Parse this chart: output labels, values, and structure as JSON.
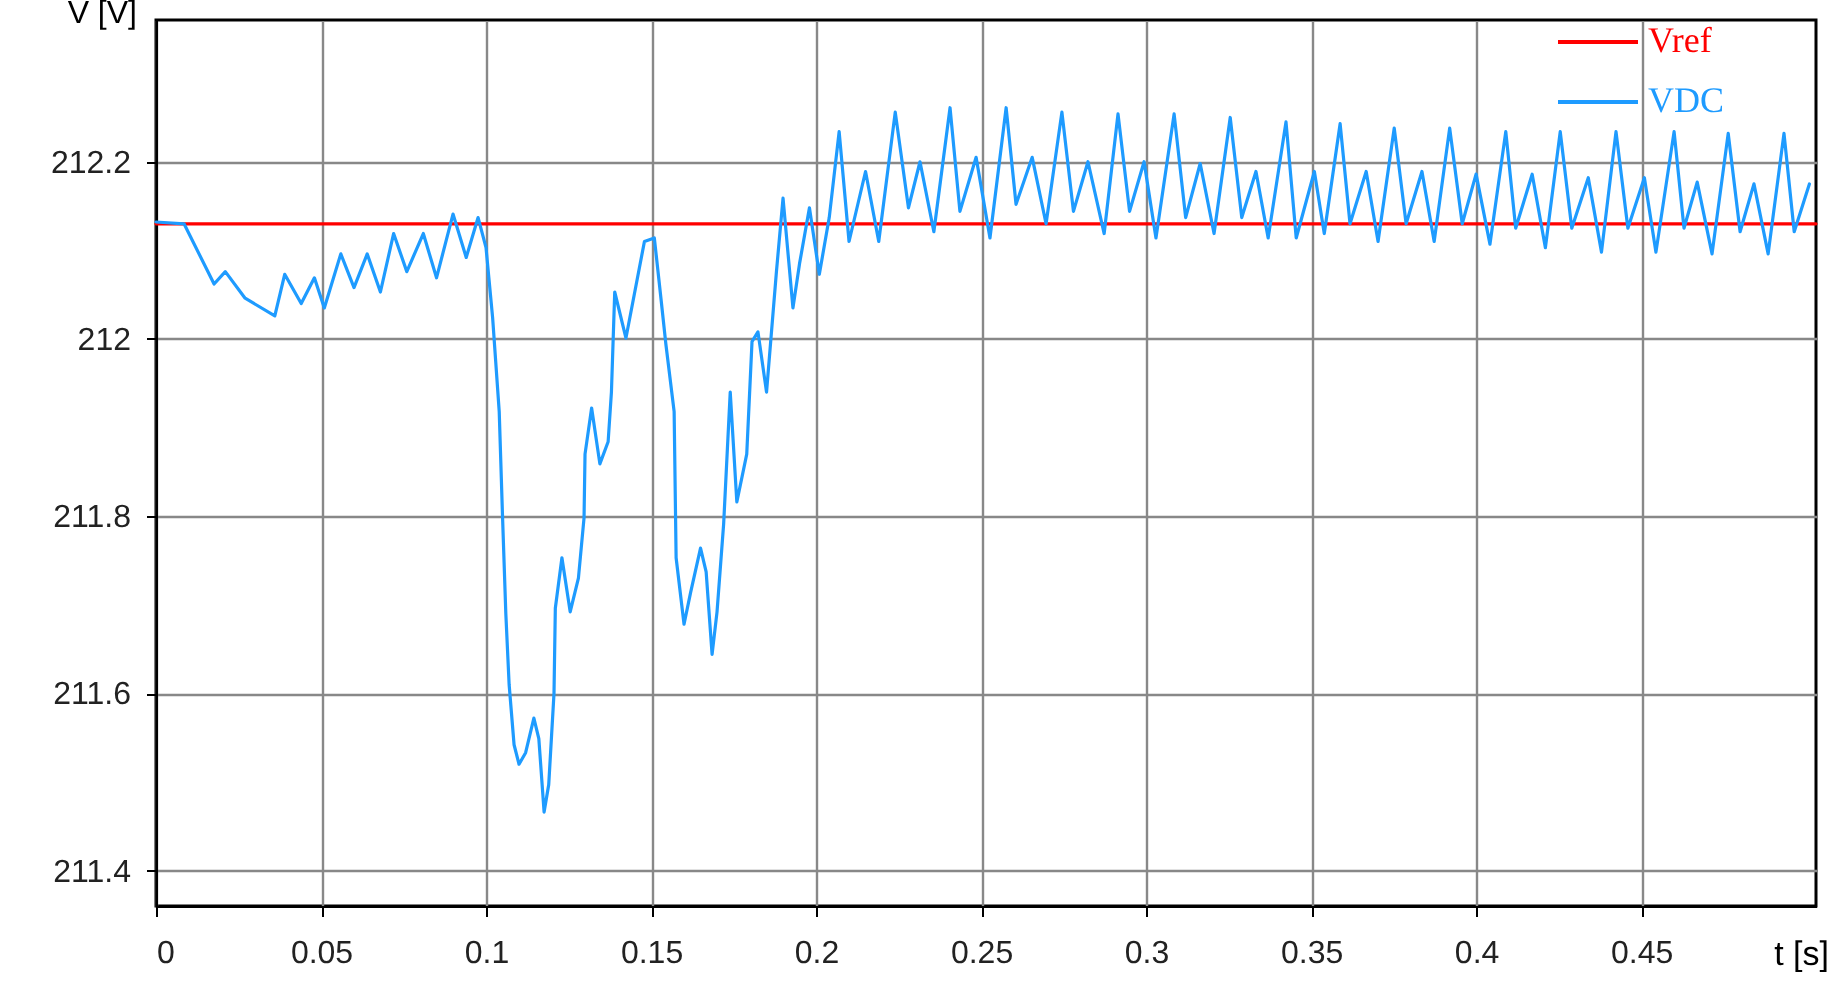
{
  "chart_data": {
    "type": "line",
    "xlabel": "t [s]",
    "ylabel": "V [V]",
    "xlim": [
      0,
      0.503
    ],
    "ylim": [
      211.36,
      212.36
    ],
    "xticks": [
      0,
      0.05,
      0.1,
      0.15,
      0.2,
      0.25,
      0.3,
      0.35,
      0.4,
      0.45
    ],
    "yticks": [
      211.4,
      211.6,
      211.8,
      212,
      212.2
    ],
    "grid": true,
    "legend": "top right",
    "line_style": "solid",
    "marker": "none",
    "series": [
      {
        "name": "Vref",
        "color": "#ff0000",
        "x": [
          0,
          0.503
        ],
        "values": [
          212.13,
          212.13
        ]
      },
      {
        "name": "VDC",
        "color": "#1e9bff",
        "x": [
          0,
          0.0085,
          0.0176,
          0.021,
          0.027,
          0.036,
          0.039,
          0.044,
          0.048,
          0.051,
          0.056,
          0.06,
          0.064,
          0.068,
          0.072,
          0.076,
          0.081,
          0.085,
          0.09,
          0.094,
          0.0976,
          0.1,
          0.102,
          0.104,
          0.105,
          0.106,
          0.107,
          0.1085,
          0.11,
          0.112,
          0.1145,
          0.116,
          0.1176,
          0.119,
          0.1206,
          0.121,
          0.123,
          0.1255,
          0.128,
          0.1297,
          0.13,
          0.132,
          0.1345,
          0.137,
          0.138,
          0.139,
          0.1424,
          0.148,
          0.151,
          0.153,
          0.1545,
          0.157,
          0.1576,
          0.16,
          0.162,
          0.165,
          0.1667,
          0.1685,
          0.17,
          0.172,
          0.1733,
          0.174,
          0.176,
          0.179,
          0.1806,
          0.1824,
          0.185,
          0.188,
          0.19,
          0.193,
          0.195,
          0.198,
          0.201,
          0.204,
          0.207,
          0.21,
          0.215,
          0.219,
          0.224,
          0.228,
          0.2315,
          0.2357,
          0.2406,
          0.2436,
          0.2485,
          0.2527,
          0.2576,
          0.2606,
          0.2655,
          0.2697,
          0.2745,
          0.278,
          0.2824,
          0.2873,
          0.2915,
          0.295,
          0.2994,
          0.303,
          0.3085,
          0.312,
          0.3164,
          0.3206,
          0.3255,
          0.329,
          0.3333,
          0.337,
          0.3424,
          0.3455,
          0.351,
          0.354,
          0.3588,
          0.3618,
          0.3667,
          0.3703,
          0.3752,
          0.3788,
          0.3836,
          0.3873,
          0.392,
          0.3958,
          0.4,
          0.4042,
          0.409,
          0.412,
          0.417,
          0.421,
          0.4255,
          0.429,
          0.434,
          0.438,
          0.4424,
          0.446,
          0.451,
          0.4545,
          0.46,
          0.463,
          0.467,
          0.4715,
          0.4764,
          0.48,
          0.4842,
          0.4885,
          0.4933,
          0.4964,
          0.501
        ],
        "values": [
          212.132,
          212.13,
          212.062,
          212.076,
          212.046,
          212.026,
          212.073,
          212.04,
          212.069,
          212.035,
          212.096,
          212.058,
          212.096,
          212.053,
          212.119,
          212.076,
          212.119,
          212.069,
          212.141,
          212.092,
          212.137,
          212.103,
          212.024,
          211.918,
          211.8,
          211.69,
          211.61,
          211.542,
          211.52,
          211.533,
          211.572,
          211.549,
          211.466,
          211.497,
          211.6,
          211.696,
          211.753,
          211.692,
          211.73,
          211.798,
          211.87,
          211.922,
          211.859,
          211.884,
          211.94,
          212.053,
          212.001,
          212.11,
          212.114,
          212.046,
          211.994,
          211.918,
          211.753,
          211.678,
          211.714,
          211.764,
          211.737,
          211.644,
          211.692,
          211.791,
          211.888,
          211.94,
          211.816,
          211.87,
          211.997,
          212.008,
          211.94,
          212.076,
          212.159,
          212.035,
          212.085,
          212.148,
          212.073,
          212.137,
          212.234,
          212.11,
          212.189,
          212.11,
          212.256,
          212.148,
          212.2,
          212.121,
          212.261,
          212.144,
          212.205,
          212.114,
          212.261,
          212.152,
          212.205,
          212.13,
          212.256,
          212.144,
          212.2,
          212.119,
          212.254,
          212.144,
          212.2,
          212.114,
          212.254,
          212.137,
          212.198,
          212.119,
          212.25,
          212.137,
          212.189,
          212.114,
          212.245,
          212.114,
          212.189,
          212.119,
          212.243,
          212.13,
          212.189,
          212.11,
          212.238,
          212.13,
          212.189,
          212.11,
          212.238,
          212.13,
          212.186,
          212.107,
          212.234,
          212.125,
          212.186,
          212.103,
          212.234,
          212.125,
          212.182,
          212.098,
          212.234,
          212.125,
          212.182,
          212.098,
          212.234,
          212.125,
          212.177,
          212.096,
          212.232,
          212.121,
          212.175,
          212.096,
          212.232,
          212.121,
          212.175
        ]
      }
    ]
  }
}
